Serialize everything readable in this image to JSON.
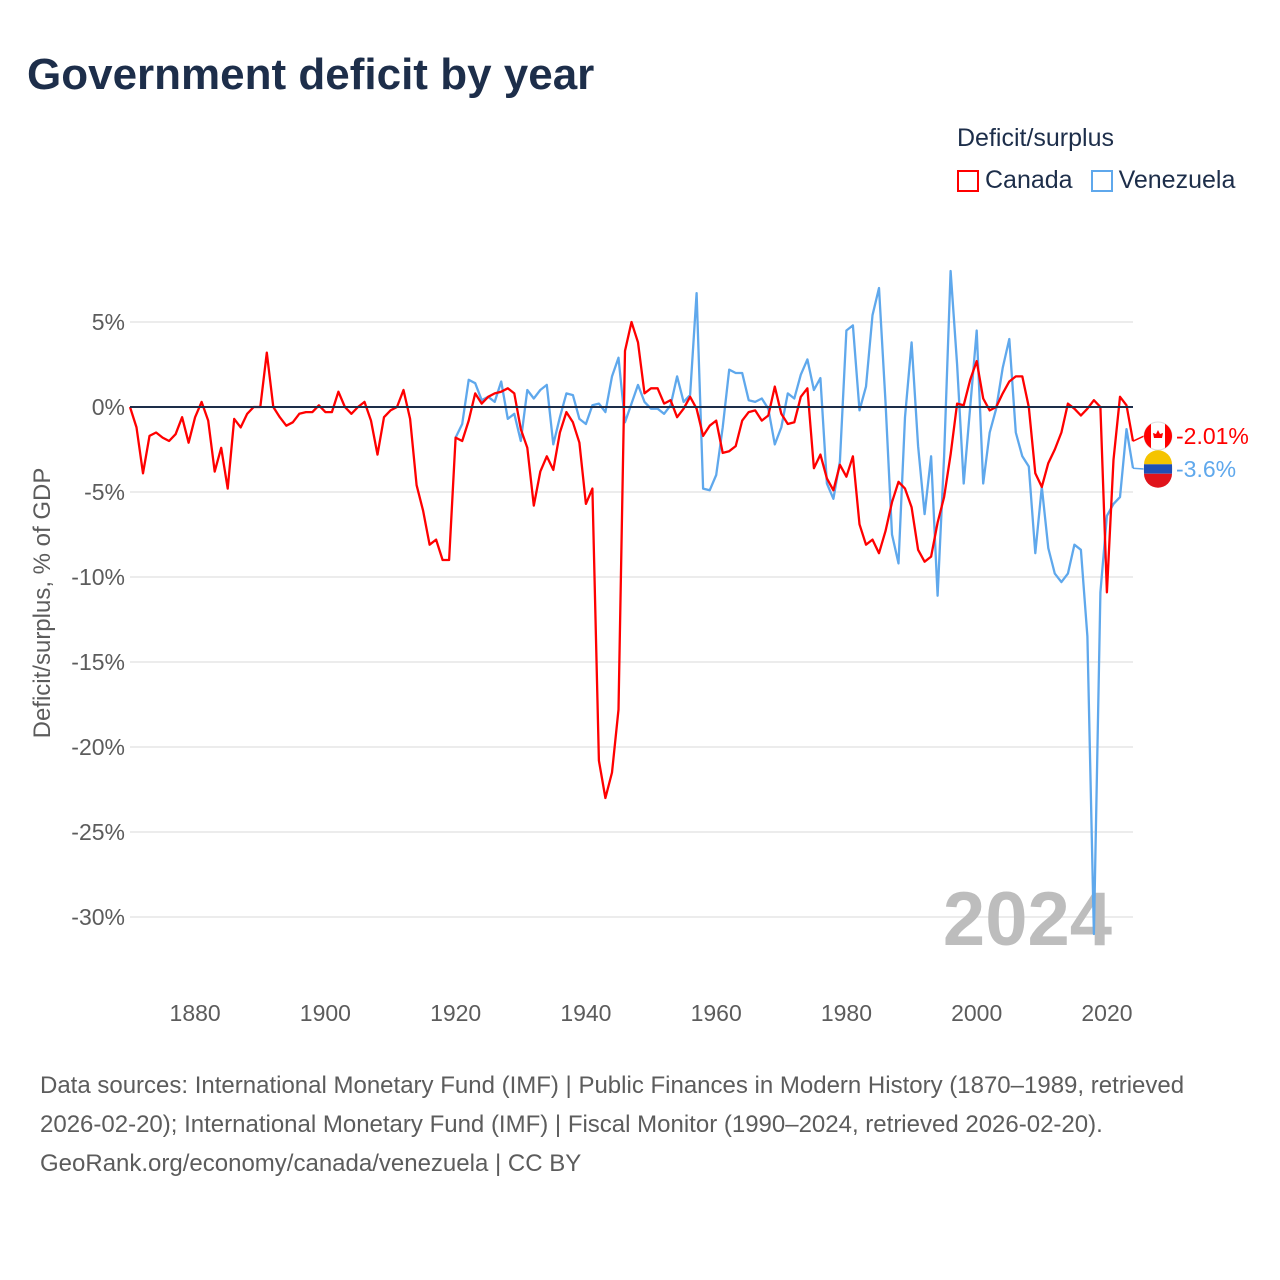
{
  "title": "Government deficit by year",
  "legend": {
    "title": "Deficit/surplus"
  },
  "footer": {
    "sources": "Data sources: International Monetary Fund (IMF) | Public Finances in Modern History (1870–1989, retrieved 2026-02-20); International Monetary Fund (IMF) | Fiscal Monitor (1990–2024, retrieved 2026-02-20).",
    "credit": "GeoRank.org/economy/canada/venezuela | CC BY"
  },
  "chart_data": {
    "type": "line",
    "title": "Government deficit by year",
    "xlabel": "",
    "ylabel": "Deficit/surplus, % of GDP",
    "xlim": [
      1870,
      2024
    ],
    "ylim": [
      -33,
      8
    ],
    "yticks": [
      5,
      0,
      -5,
      -10,
      -15,
      -20,
      -25,
      -30
    ],
    "ytick_labels": [
      "5%",
      "0%",
      "-5%",
      "-10%",
      "-15%",
      "-20%",
      "-25%",
      "-30%"
    ],
    "xticks": [
      1880,
      1900,
      1920,
      1940,
      1960,
      1980,
      2000,
      2020
    ],
    "xtick_labels": [
      "1880",
      "1900",
      "1920",
      "1940",
      "1960",
      "1980",
      "2000",
      "2020"
    ],
    "grid": true,
    "legend_position": "top-right",
    "current_year": "2024",
    "series": [
      {
        "name": "Canada",
        "color": "#ff0000",
        "start_year": 1870,
        "end_label": "-2.01%",
        "values": [
          0,
          -1.2,
          -3.9,
          -1.7,
          -1.5,
          -1.8,
          -2.0,
          -1.6,
          -0.6,
          -2.1,
          -0.6,
          0.3,
          -0.8,
          -3.8,
          -2.4,
          -4.8,
          -0.7,
          -1.2,
          -0.4,
          0,
          0,
          3.2,
          0,
          -0.6,
          -1.1,
          -0.9,
          -0.4,
          -0.3,
          -0.3,
          0.1,
          -0.3,
          -0.3,
          0.9,
          0,
          -0.4,
          0,
          0.3,
          -0.8,
          -2.8,
          -0.6,
          -0.2,
          0,
          1.0,
          -0.7,
          -4.6,
          -6.1,
          -8.1,
          -7.8,
          -9.0,
          -9.0,
          -1.8,
          -2.0,
          -0.8,
          0.8,
          0.2,
          0.6,
          0.8,
          0.9,
          1.1,
          0.8,
          -1.3,
          -2.4,
          -5.8,
          -3.8,
          -2.9,
          -3.7,
          -1.5,
          -0.3,
          -0.9,
          -2.1,
          -5.7,
          -4.8,
          -20.8,
          -23.0,
          -21.5,
          -17.8,
          3.3,
          5.0,
          3.8,
          0.8,
          1.1,
          1.1,
          0.2,
          0.4,
          -0.6,
          -0.1,
          0.6,
          -0.1,
          -1.7,
          -1.1,
          -0.8,
          -2.7,
          -2.6,
          -2.3,
          -0.8,
          -0.3,
          -0.2,
          -0.8,
          -0.5,
          1.2,
          -0.4,
          -1.0,
          -0.9,
          0.6,
          1.1,
          -3.6,
          -2.8,
          -4.2,
          -4.9,
          -3.4,
          -4.1,
          -2.9,
          -6.9,
          -8.1,
          -7.8,
          -8.6,
          -7.3,
          -5.6,
          -4.4,
          -4.8,
          -5.9,
          -8.4,
          -9.1,
          -8.8,
          -6.8,
          -5.3,
          -2.8,
          0.2,
          0.1,
          1.6,
          2.7,
          0.5,
          -0.2,
          0,
          0.8,
          1.5,
          1.8,
          1.8,
          0,
          -3.9,
          -4.7,
          -3.3,
          -2.5,
          -1.5,
          0.2,
          -0.1,
          -0.5,
          -0.1,
          0.4,
          0,
          -10.9,
          -3.1,
          0.6,
          0.1,
          -2.01
        ]
      },
      {
        "name": "Venezuela",
        "color": "#5fa8ec",
        "start_year": 1920,
        "end_label": "-3.6%",
        "values": [
          -1.8,
          -1.0,
          1.6,
          1.4,
          0.4,
          0.6,
          0.3,
          1.5,
          -0.7,
          -0.4,
          -2.0,
          1.0,
          0.5,
          1.0,
          1.3,
          -2.2,
          -0.6,
          0.8,
          0.7,
          -0.7,
          -1.0,
          0.1,
          0.2,
          -0.3,
          1.8,
          2.9,
          -0.9,
          0.2,
          1.3,
          0.3,
          -0.1,
          -0.1,
          -0.4,
          0.1,
          1.8,
          0.3,
          0.7,
          6.7,
          -4.8,
          -4.9,
          -4.0,
          -1.2,
          2.2,
          2.0,
          2.0,
          0.4,
          0.3,
          0.5,
          -0.1,
          -2.2,
          -1.2,
          0.8,
          0.5,
          1.9,
          2.8,
          1.0,
          1.7,
          -4.5,
          -5.4,
          -3.2,
          4.5,
          4.8,
          -0.2,
          1.2,
          5.4,
          7.0,
          0.3,
          -7.5,
          -9.2,
          -0.6,
          3.8,
          -2.3,
          -6.3,
          -2.9,
          -11.1,
          -2.9,
          8.0,
          2.5,
          -4.5,
          0,
          4.5,
          -4.5,
          -1.5,
          -0.1,
          2.3,
          4.0,
          -1.5,
          -2.9,
          -3.5,
          -8.6,
          -4.7,
          -8.3,
          -9.8,
          -10.3,
          -9.8,
          -8.1,
          -8.4,
          -13.5,
          -31.0,
          -10.9,
          -6.4,
          -5.7,
          -5.3,
          -1.3,
          -3.6
        ]
      }
    ]
  }
}
